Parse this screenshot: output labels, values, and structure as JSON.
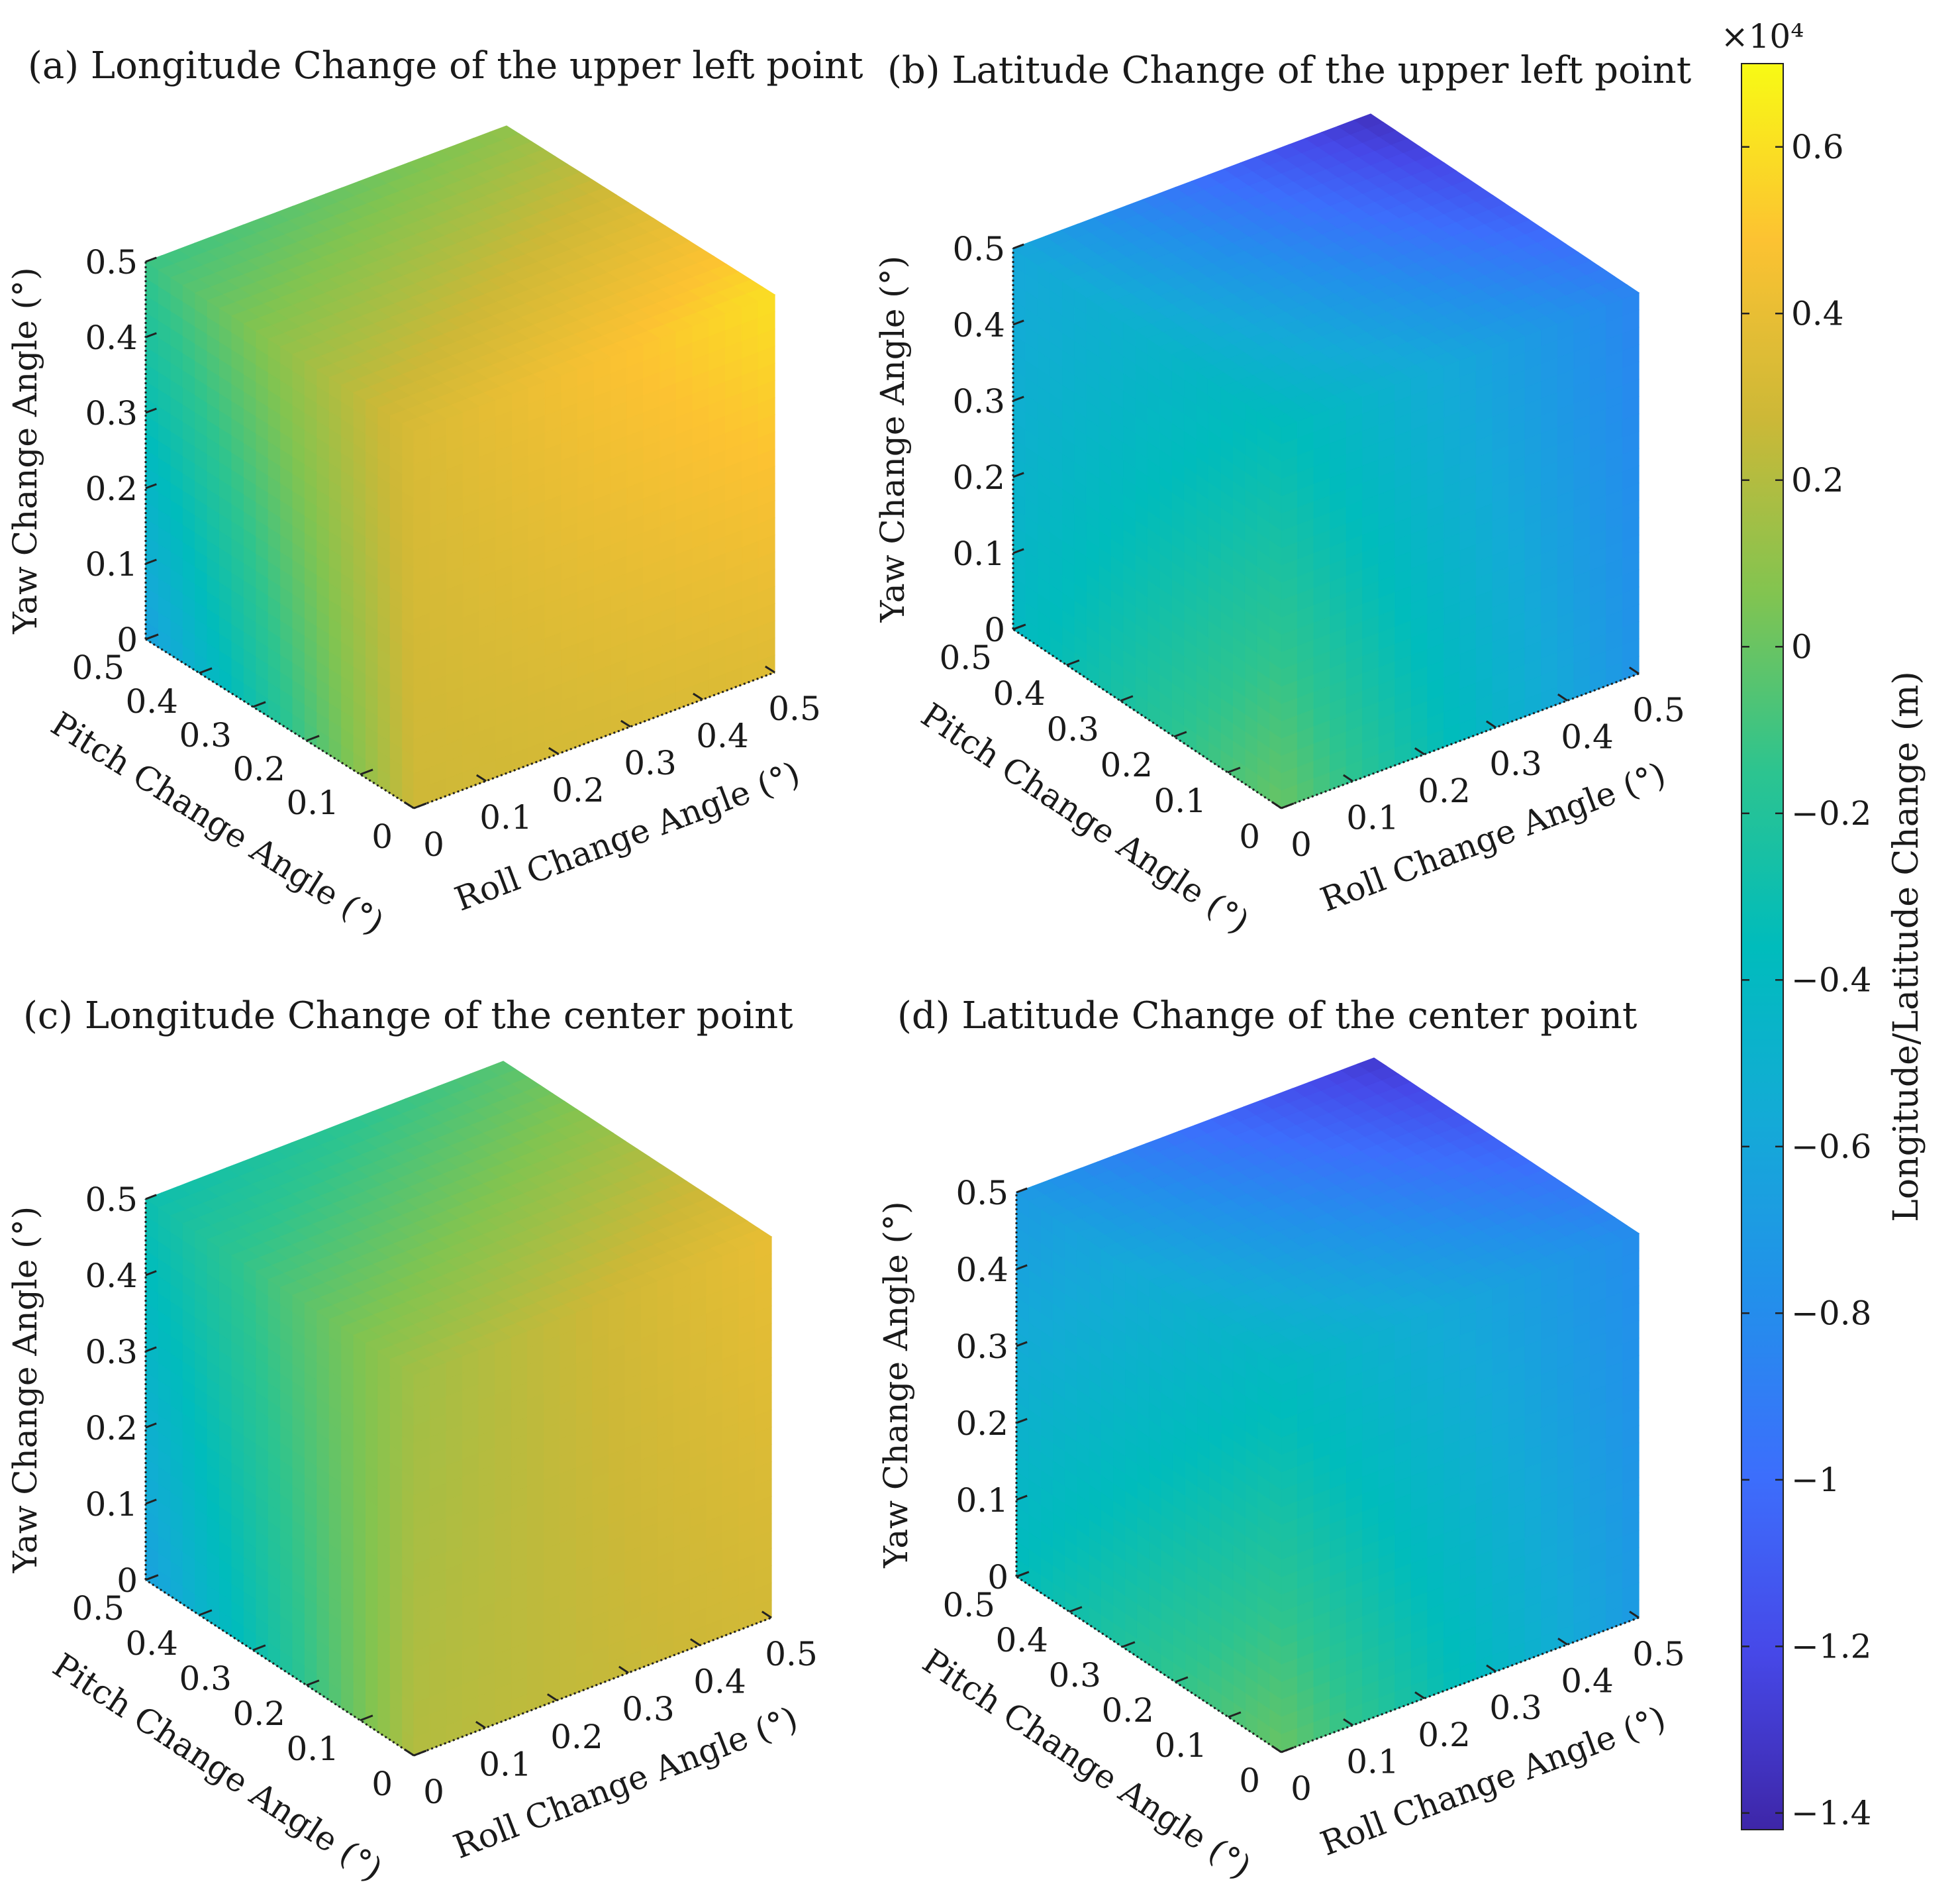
{
  "chart_data": {
    "type": "heatmap",
    "plot_style": "3d-cube-surface",
    "panels": [
      {
        "id": "a",
        "title": "(a) Longitude Change of the upper left point",
        "x": {
          "label": "Roll Change Angle (°)",
          "ticks": [
            0,
            0.1,
            0.2,
            0.3,
            0.4,
            0.5
          ],
          "lim": [
            0,
            0.5
          ]
        },
        "y": {
          "label": "Pitch Change Angle (°)",
          "ticks": [
            0,
            0.1,
            0.2,
            0.3,
            0.4,
            0.5
          ],
          "lim": [
            0,
            0.5
          ]
        },
        "z": {
          "label": "Yaw Change Angle (°)",
          "ticks": [
            0,
            0.1,
            0.2,
            0.3,
            0.4,
            0.5
          ],
          "lim": [
            0,
            0.5
          ]
        },
        "approx_face_values": {
          "top": {
            "pitch_max_roll_0": -1200,
            "pitch_max_roll_max": 1000,
            "pitch_0_roll_0": 3300,
            "pitch_0_roll_max": 6000
          },
          "front_roll": {
            "yaw_max_roll_0": 3300,
            "yaw_max_roll_max": 6000,
            "yaw_0_roll_0": 2800,
            "yaw_0_roll_max": 3500
          },
          "left_pitch": {
            "yaw_max_pitch_max": -1200,
            "yaw_max_pitch_0": 3300,
            "yaw_0_pitch_max": -6500,
            "yaw_0_pitch_0": 2800
          }
        }
      },
      {
        "id": "b",
        "title": "(b) Latitude Change of the upper left point",
        "x": {
          "label": "Roll Change Angle (°)",
          "ticks": [
            0,
            0.1,
            0.2,
            0.3,
            0.4,
            0.5
          ],
          "lim": [
            0,
            0.5
          ]
        },
        "y": {
          "label": "Pitch Change Angle (°)",
          "ticks": [
            0,
            0.1,
            0.2,
            0.3,
            0.4,
            0.5
          ],
          "lim": [
            0,
            0.5
          ]
        },
        "z": {
          "label": "Yaw Change Angle (°)",
          "ticks": [
            0,
            0.1,
            0.2,
            0.3,
            0.4,
            0.5
          ],
          "lim": [
            0,
            0.5
          ]
        },
        "approx_face_values": {
          "top": {
            "pitch_max_roll_0": -6000,
            "pitch_max_roll_max": -13500,
            "pitch_0_roll_0": -3500,
            "pitch_0_roll_max": -8500
          },
          "front_roll": {
            "yaw_max_roll_0": -3500,
            "yaw_max_roll_max": -8500,
            "yaw_0_roll_0": 0,
            "yaw_0_roll_max": -7500
          },
          "left_pitch": {
            "yaw_max_pitch_max": -6000,
            "yaw_max_pitch_0": -3500,
            "yaw_0_pitch_max": -4000,
            "yaw_0_pitch_0": 0
          }
        }
      },
      {
        "id": "c",
        "title": "(c) Longitude Change of the center point",
        "x": {
          "label": "Roll Change Angle (°)",
          "ticks": [
            0,
            0.1,
            0.2,
            0.3,
            0.4,
            0.5
          ],
          "lim": [
            0,
            0.5
          ]
        },
        "y": {
          "label": "Pitch Change Angle (°)",
          "ticks": [
            0,
            0.1,
            0.2,
            0.3,
            0.4,
            0.5
          ],
          "lim": [
            0,
            0.5
          ]
        },
        "z": {
          "label": "Yaw Change Angle (°)",
          "ticks": [
            0,
            0.1,
            0.2,
            0.3,
            0.4,
            0.5
          ],
          "lim": [
            0,
            0.5
          ]
        },
        "approx_face_values": {
          "top": {
            "pitch_max_roll_0": -3000,
            "pitch_max_roll_max": -500,
            "pitch_0_roll_0": 1500,
            "pitch_0_roll_max": 4000
          },
          "front_roll": {
            "yaw_max_roll_0": 1500,
            "yaw_max_roll_max": 4000,
            "yaw_0_roll_0": 2000,
            "yaw_0_roll_max": 3000
          },
          "left_pitch": {
            "yaw_max_pitch_max": -3000,
            "yaw_max_pitch_0": 1500,
            "yaw_0_pitch_max": -6500,
            "yaw_0_pitch_0": 2000
          }
        }
      },
      {
        "id": "d",
        "title": "(d) Latitude Change  of the center point",
        "x": {
          "label": "Roll Change Angle (°)",
          "ticks": [
            0,
            0.1,
            0.2,
            0.3,
            0.4,
            0.5
          ],
          "lim": [
            0,
            0.5
          ]
        },
        "y": {
          "label": "Pitch Change Angle (°)",
          "ticks": [
            0,
            0.1,
            0.2,
            0.3,
            0.4,
            0.5
          ],
          "lim": [
            0,
            0.5
          ]
        },
        "z": {
          "label": "Yaw Change Angle (°)",
          "ticks": [
            0,
            0.1,
            0.2,
            0.3,
            0.4,
            0.5
          ],
          "lim": [
            0,
            0.5
          ]
        },
        "approx_face_values": {
          "top": {
            "pitch_max_roll_0": -7000,
            "pitch_max_roll_max": -13000,
            "pitch_0_roll_0": -4000,
            "pitch_0_roll_max": -8000
          },
          "front_roll": {
            "yaw_max_roll_0": -4000,
            "yaw_max_roll_max": -8000,
            "yaw_0_roll_0": 0,
            "yaw_0_roll_max": -7000
          },
          "left_pitch": {
            "yaw_max_pitch_max": -7000,
            "yaw_max_pitch_0": -4000,
            "yaw_0_pitch_max": -3500,
            "yaw_0_pitch_0": 0
          }
        }
      }
    ],
    "colorbar": {
      "label": "Longitude/Latitude Change (m)",
      "exponent": "×10⁴",
      "colormap": "parula",
      "lim": [
        -14200,
        7000
      ],
      "ticks": [
        6000,
        4000,
        2000,
        0,
        -2000,
        -4000,
        -6000,
        -8000,
        -10000,
        -12000,
        -14000
      ],
      "tick_labels": [
        "0.6",
        "0.4",
        "0.2",
        "0",
        "−0.2",
        "−0.4",
        "−0.6",
        "−0.8",
        "−1",
        "−1.2",
        "−1.4"
      ]
    }
  }
}
